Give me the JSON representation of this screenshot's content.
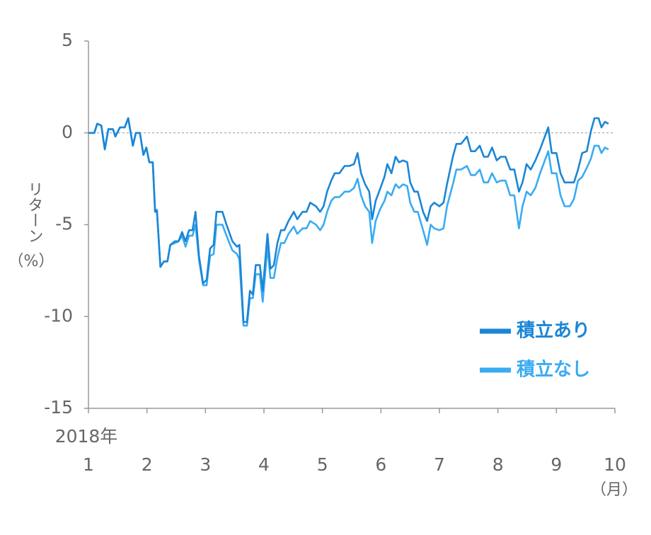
{
  "chart_data": {
    "type": "line",
    "ylabel": "リターン",
    "ylabel_unit": "（%）",
    "year_label": "2018年",
    "x_unit_label": "（月）",
    "x": [
      1,
      1.1,
      1.15,
      1.22,
      1.28,
      1.34,
      1.42,
      1.46,
      1.54,
      1.62,
      1.68,
      1.76,
      1.81,
      1.88,
      1.94,
      1.99,
      2.04,
      2.1,
      2.14,
      2.17,
      2.23,
      2.29,
      2.35,
      2.4,
      2.48,
      2.54,
      2.6,
      2.66,
      2.72,
      2.78,
      2.83,
      2.89,
      2.96,
      3.02,
      3.08,
      3.14,
      3.19,
      3.29,
      3.36,
      3.46,
      3.54,
      3.58,
      3.65,
      3.71,
      3.76,
      3.81,
      3.86,
      3.93,
      3.98,
      4.06,
      4.11,
      4.17,
      4.23,
      4.29,
      4.35,
      4.42,
      4.51,
      4.57,
      4.66,
      4.73,
      4.79,
      4.89,
      4.96,
      5.02,
      5.08,
      5.15,
      5.21,
      5.29,
      5.38,
      5.46,
      5.54,
      5.6,
      5.66,
      5.73,
      5.8,
      5.85,
      5.91,
      5.98,
      6.06,
      6.11,
      6.18,
      6.25,
      6.31,
      6.38,
      6.45,
      6.5,
      6.57,
      6.63,
      6.72,
      6.79,
      6.85,
      6.91,
      7.0,
      7.07,
      7.13,
      7.23,
      7.29,
      7.37,
      7.47,
      7.54,
      7.61,
      7.69,
      7.76,
      7.83,
      7.9,
      7.98,
      8.05,
      8.13,
      8.21,
      8.28,
      8.36,
      8.42,
      8.49,
      8.56,
      8.64,
      8.72,
      8.79,
      8.86,
      8.92,
      9.0,
      9.07,
      9.14,
      9.23,
      9.3,
      9.37,
      9.44,
      9.52,
      9.59,
      9.65,
      9.72,
      9.77,
      9.83,
      9.89
    ],
    "series": [
      {
        "name": "積立あり",
        "color": "#1a86d6",
        "values": [
          0,
          0,
          0.5,
          0.4,
          -0.9,
          0.2,
          0.2,
          -0.2,
          0.3,
          0.3,
          0.8,
          -0.7,
          0,
          0,
          -1.2,
          -0.8,
          -1.6,
          -1.6,
          -4.3,
          -4.2,
          -7.3,
          -7.0,
          -7.0,
          -6.1,
          -5.9,
          -5.9,
          -5.4,
          -5.9,
          -5.3,
          -5.3,
          -4.3,
          -6.7,
          -8.2,
          -8.0,
          -6.3,
          -6.1,
          -4.3,
          -4.3,
          -5.0,
          -5.9,
          -6.2,
          -6.1,
          -10.3,
          -10.3,
          -8.6,
          -8.8,
          -7.2,
          -7.2,
          -8.6,
          -5.5,
          -7.4,
          -7.2,
          -6.0,
          -5.3,
          -5.3,
          -4.8,
          -4.3,
          -4.7,
          -4.3,
          -4.3,
          -3.8,
          -4.0,
          -4.3,
          -4.0,
          -3.2,
          -2.6,
          -2.2,
          -2.2,
          -1.8,
          -1.8,
          -1.7,
          -1.1,
          -2.2,
          -2.8,
          -3.2,
          -4.7,
          -3.7,
          -3.1,
          -2.4,
          -1.7,
          -2.2,
          -1.3,
          -1.6,
          -1.5,
          -1.6,
          -2.7,
          -3.2,
          -3.2,
          -4.3,
          -4.8,
          -4.0,
          -3.8,
          -4.0,
          -3.8,
          -2.8,
          -1.3,
          -0.6,
          -0.6,
          -0.2,
          -1.0,
          -1.0,
          -0.7,
          -1.3,
          -1.3,
          -0.8,
          -1.5,
          -1.3,
          -1.3,
          -2.0,
          -2.0,
          -3.2,
          -2.7,
          -1.7,
          -2.0,
          -1.5,
          -0.9,
          -0.3,
          0.3,
          -1.1,
          -1.1,
          -2.2,
          -2.7,
          -2.7,
          -2.7,
          -2.0,
          -1.1,
          -1.0,
          0.1,
          0.8,
          0.8,
          0.3,
          0.6,
          0.5
        ]
      },
      {
        "name": "積立なし",
        "color": "#3aabf2",
        "values": [
          0,
          0,
          0.5,
          0.4,
          -0.9,
          0.2,
          0.2,
          -0.2,
          0.3,
          0.3,
          0.8,
          -0.7,
          0,
          0,
          -1.2,
          -0.8,
          -1.6,
          -1.6,
          -4.3,
          -4.2,
          -7.3,
          -7.0,
          -7.0,
          -6.1,
          -6.0,
          -5.9,
          -5.6,
          -6.2,
          -5.6,
          -5.6,
          -5.0,
          -6.9,
          -8.3,
          -8.3,
          -6.7,
          -6.6,
          -5.0,
          -5.0,
          -5.6,
          -6.4,
          -6.6,
          -6.9,
          -10.5,
          -10.5,
          -9.0,
          -9.0,
          -7.7,
          -7.7,
          -9.2,
          -6.2,
          -7.9,
          -7.9,
          -6.8,
          -6.0,
          -6.0,
          -5.5,
          -5.1,
          -5.5,
          -5.2,
          -5.2,
          -4.8,
          -5.0,
          -5.3,
          -5.0,
          -4.3,
          -3.7,
          -3.5,
          -3.5,
          -3.2,
          -3.2,
          -3.0,
          -2.5,
          -3.4,
          -4.0,
          -4.3,
          -6.0,
          -4.8,
          -4.2,
          -3.7,
          -3.2,
          -3.4,
          -2.8,
          -3.0,
          -2.8,
          -2.9,
          -3.8,
          -4.3,
          -4.3,
          -5.3,
          -6.1,
          -5.0,
          -5.2,
          -5.3,
          -5.2,
          -4.0,
          -2.8,
          -2.0,
          -2.0,
          -1.8,
          -2.3,
          -2.3,
          -2.0,
          -2.7,
          -2.7,
          -2.2,
          -2.7,
          -2.6,
          -2.6,
          -3.4,
          -3.4,
          -5.2,
          -4.0,
          -3.2,
          -3.4,
          -3.0,
          -2.2,
          -1.6,
          -1.0,
          -2.2,
          -2.2,
          -3.4,
          -4.0,
          -4.0,
          -3.6,
          -2.6,
          -2.4,
          -1.9,
          -1.4,
          -0.7,
          -0.7,
          -1.1,
          -0.8,
          -0.9
        ]
      }
    ],
    "xlim": [
      1,
      10
    ],
    "xticks": [
      1,
      2,
      3,
      4,
      5,
      6,
      7,
      8,
      9,
      10
    ],
    "ylim": [
      -15,
      5
    ],
    "yticks": [
      5,
      0,
      -5,
      -10,
      -15
    ],
    "zero_line": true,
    "legend_position": "lower-right"
  }
}
